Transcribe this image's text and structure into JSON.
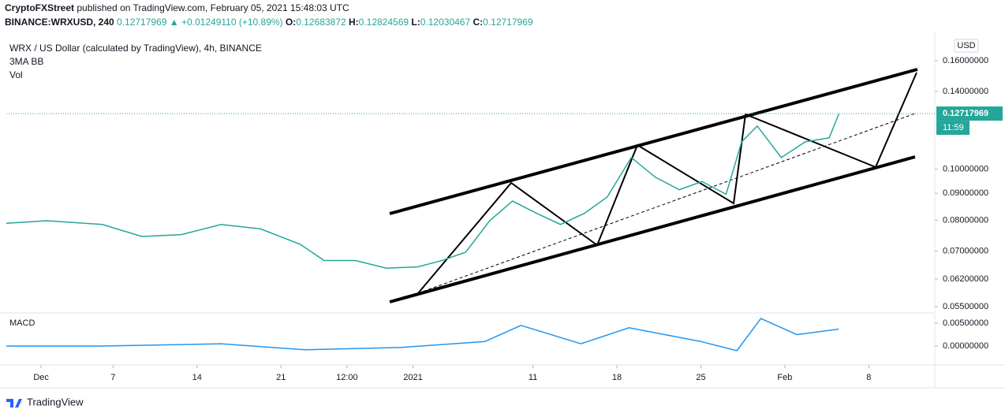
{
  "header": {
    "published_by": "CryptoFXStreet",
    "published_text": "published on TradingView.com, February 05, 2021 15:48:03 UTC",
    "symbol": "BINANCE:WRXUSD, 240",
    "last_price": 0.12717969,
    "change": "▲ +0.01249110 (+10.89%)",
    "open_label": "O:",
    "open": 0.12683872,
    "high_label": "H:",
    "high": 0.12824569,
    "low_label": "L:",
    "low": 0.12030467,
    "close_label": "C:",
    "close": 0.12717969,
    "legend_title": "WRX / US Dollar (calculated by TradingView), 4h, BINANCE",
    "indicator_1": "3MA BB",
    "indicator_2": "Vol",
    "currency": "USD",
    "countdown": "11:59",
    "brand": "TradingView"
  },
  "chart_data": [
    {
      "type": "line",
      "yscale": "log",
      "color": "#26a69a",
      "x": [
        -2.9,
        0.5,
        5.1,
        8.4,
        11.7,
        15.0,
        18.3,
        21.6,
        23.6,
        26.2,
        28.8,
        31.4,
        33.4,
        35.4,
        37.4,
        39.3,
        41.3,
        43.3,
        45.3,
        47.2,
        49.2,
        51.2,
        53.2,
        55.1,
        57.1,
        58.4,
        59.7,
        61.7,
        63.7,
        65.7,
        66.5
      ],
      "values": [
        0.079,
        0.0799,
        0.0786,
        0.0746,
        0.0752,
        0.0786,
        0.0771,
        0.0721,
        0.0672,
        0.0672,
        0.065,
        0.0654,
        0.0672,
        0.0697,
        0.0799,
        0.087,
        0.0825,
        0.0786,
        0.0825,
        0.0886,
        0.1051,
        0.0965,
        0.0914,
        0.0947,
        0.0896,
        0.1125,
        0.1205,
        0.1051,
        0.1125,
        0.1145,
        0.127
      ],
      "xlim": [
        -2.9,
        74.5
      ],
      "ylim": [
        0.0539,
        0.1785
      ],
      "xticks": [
        {
          "value": 0,
          "label": "Dec"
        },
        {
          "value": 6,
          "label": "7"
        },
        {
          "value": 13,
          "label": "14"
        },
        {
          "value": 20,
          "label": "21"
        },
        {
          "value": 25.5,
          "label": "12:00"
        },
        {
          "value": 31,
          "label": "2021"
        },
        {
          "value": 41,
          "label": "11"
        },
        {
          "value": 48,
          "label": "18"
        },
        {
          "value": 55,
          "label": "25"
        },
        {
          "value": 62,
          "label": "Feb"
        },
        {
          "value": 69,
          "label": "8"
        }
      ],
      "yticks": [
        {
          "value": 0.16,
          "label": "0.16000000"
        },
        {
          "value": 0.14,
          "label": "0.14000000"
        },
        {
          "value": 0.1,
          "label": "0.10000000"
        },
        {
          "value": 0.09,
          "label": "0.09000000"
        },
        {
          "value": 0.08,
          "label": "0.08000000"
        },
        {
          "value": 0.07,
          "label": "0.07000000"
        },
        {
          "value": 0.062,
          "label": "0.06200000"
        },
        {
          "value": 0.055,
          "label": "0.05500000"
        }
      ]
    },
    {
      "type": "line",
      "title": "MACD",
      "color": "#2196f3",
      "x": [
        -2.9,
        5,
        15,
        22,
        30,
        37,
        40,
        45,
        49,
        55,
        58,
        60,
        63,
        66.5
      ],
      "values": [
        0,
        0,
        0.0005,
        -0.0008,
        -0.0003,
        0.001,
        0.0045,
        0.0005,
        0.004,
        0.001,
        -0.001,
        0.006,
        0.0025,
        0.0037
      ],
      "xlim": [
        -2.9,
        74.5
      ],
      "ylim": [
        -0.0036,
        0.0067
      ],
      "yticks": [
        {
          "value": 0.005,
          "label": "0.00500000"
        },
        {
          "value": 0,
          "label": "0.00000000"
        }
      ]
    }
  ]
}
